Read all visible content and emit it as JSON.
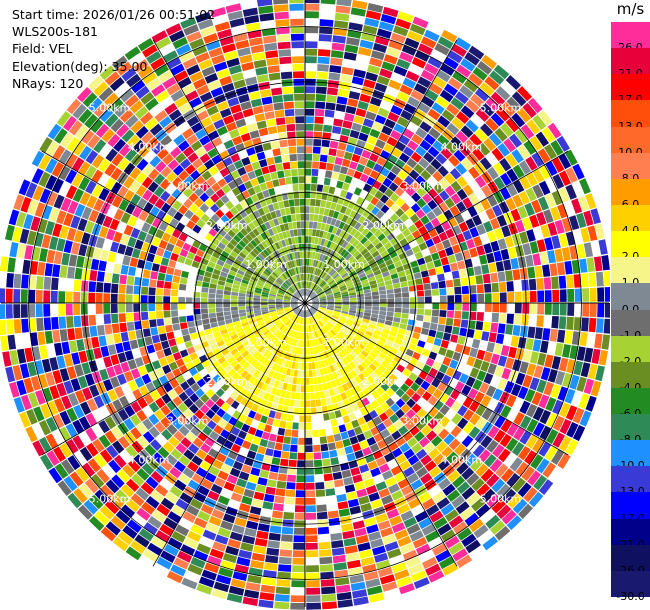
{
  "info": {
    "start_time": "Start time: 2026/01/26 00:51:02",
    "site": "WLS200s-181",
    "field": "Field: VEL",
    "elevation": "Elevation(deg): 35.00",
    "nrays": "NRays: 120"
  },
  "colorbar": {
    "title": "m/s",
    "levels": [
      {
        "label": "26.0",
        "color": "#ff2d9a"
      },
      {
        "label": "21.0",
        "color": "#e8003a"
      },
      {
        "label": "17.0",
        "color": "#ff0000"
      },
      {
        "label": "13.0",
        "color": "#ff4f0a"
      },
      {
        "label": "10.0",
        "color": "#ff6a2a"
      },
      {
        "label": "8.0",
        "color": "#ff7f50"
      },
      {
        "label": "6.0",
        "color": "#ff9c00"
      },
      {
        "label": "4.0",
        "color": "#ffd000"
      },
      {
        "label": "2.0",
        "color": "#ffff00"
      },
      {
        "label": "1.0",
        "color": "#f6f58a"
      },
      {
        "label": "0.0",
        "color": "#7e8993"
      },
      {
        "label": "-1.0",
        "color": "#6e6e6e"
      },
      {
        "label": "-2.0",
        "color": "#a7d233"
      },
      {
        "label": "-4.0",
        "color": "#6b8e23"
      },
      {
        "label": "-6.0",
        "color": "#228b22"
      },
      {
        "label": "-8.0",
        "color": "#2e8b57"
      },
      {
        "label": "-10.0",
        "color": "#1e90ff"
      },
      {
        "label": "-13.0",
        "color": "#3a3ad6"
      },
      {
        "label": "-17.0",
        "color": "#0000ff"
      },
      {
        "label": "-21.0",
        "color": "#00008b"
      },
      {
        "label": "-26.0",
        "color": "#101060"
      },
      {
        "label": "-30.0",
        "color": "#191970"
      }
    ]
  },
  "chart_data": {
    "type": "heatmap",
    "subtype": "polar PPI scan",
    "field": "VEL",
    "units": "m/s",
    "range_rings_km": [
      1,
      2,
      3,
      4,
      5
    ],
    "ring_labels": [
      "1.00km",
      "2.00km",
      "3.00km",
      "4.00km",
      "5.00km"
    ],
    "max_range_km": 5.5,
    "n_rays": 120,
    "spokes_deg": [
      0,
      30,
      60,
      90,
      120,
      150,
      180,
      210,
      240,
      270,
      300,
      330
    ],
    "regions": [
      {
        "description": "near field north, weak negative velocity",
        "range_km": [
          0,
          2.3
        ],
        "azimuth_deg": [
          270,
          90
        ],
        "dominant_values": [
          -2.0,
          -4.0,
          -6.0
        ]
      },
      {
        "description": "near field south, weak positive velocity",
        "range_km": [
          0,
          2.3
        ],
        "azimuth_deg": [
          100,
          250
        ],
        "dominant_values": [
          2.0,
          1.0
        ]
      },
      {
        "description": "outer range, noise",
        "range_km": [
          2.3,
          5.5
        ],
        "azimuth_deg": [
          0,
          360
        ],
        "dominant_values": "mixed"
      }
    ]
  }
}
